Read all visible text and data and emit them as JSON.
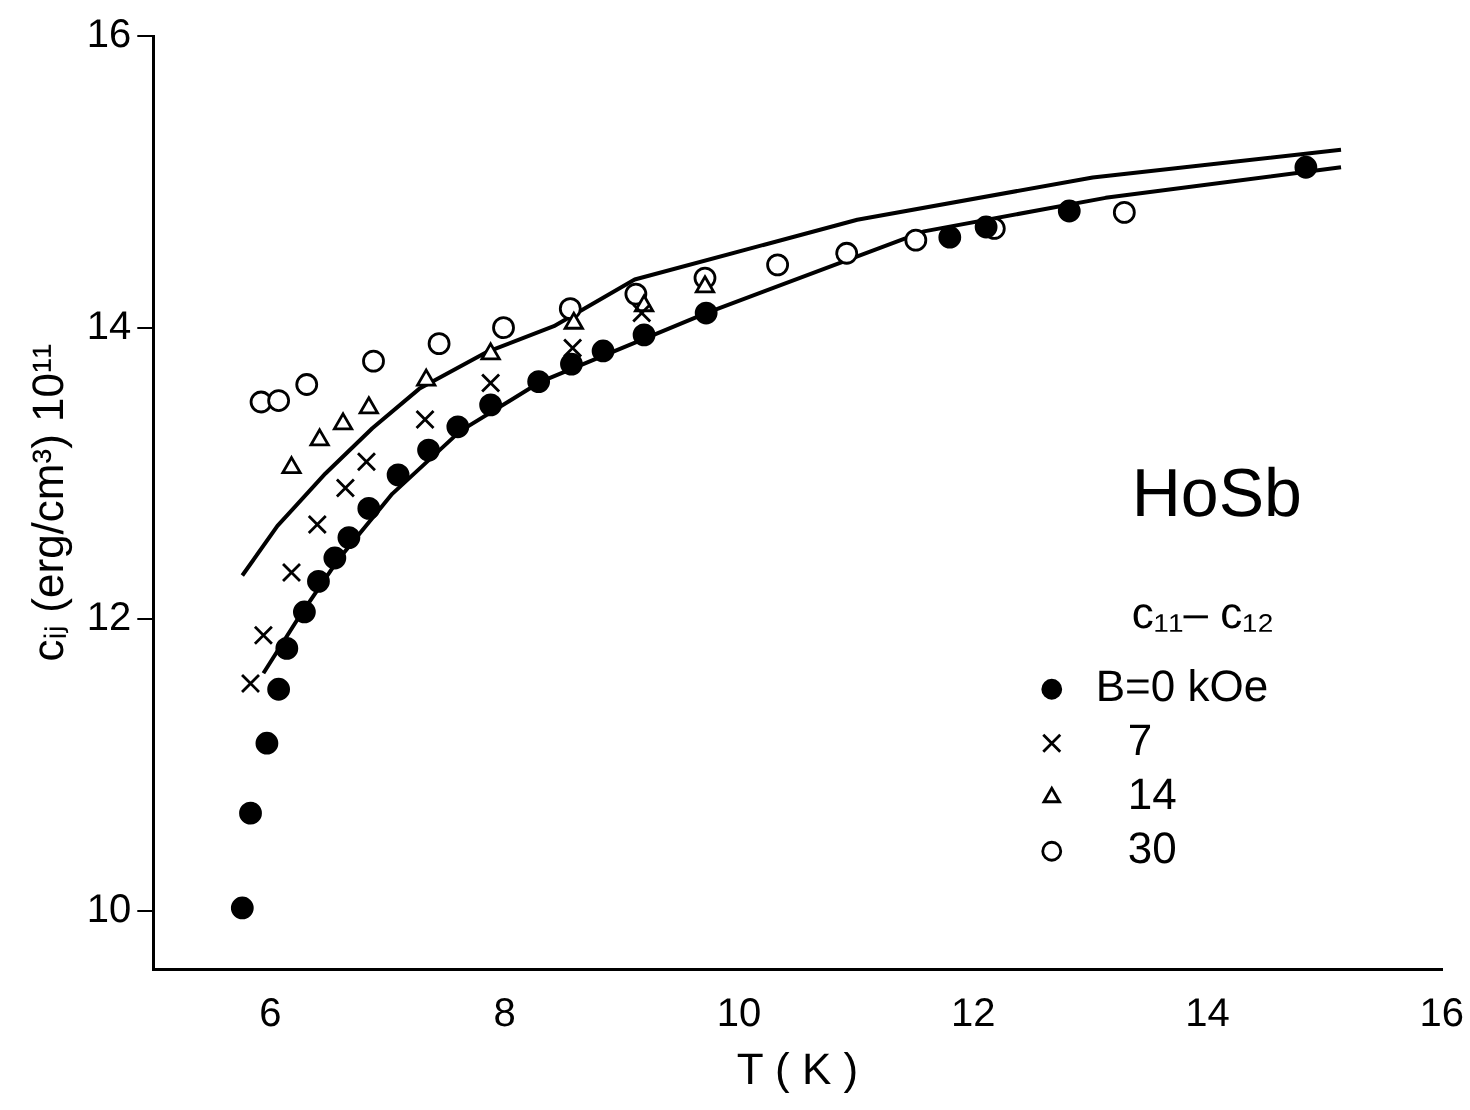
{
  "chart_data": {
    "type": "scatter",
    "xlabel": "T ( K )",
    "ylabel": "cᵢⱼ (erg/cm³) 10¹¹",
    "annotations": [
      "HoSb",
      "c₁₁– c₁₂"
    ],
    "xlim": [
      5,
      16
    ],
    "xticks": [
      6,
      8,
      10,
      12,
      14,
      16
    ],
    "ylim": [
      9.6,
      16
    ],
    "yticks": [
      10,
      12,
      14,
      16
    ],
    "grid": false,
    "legend": "bottom right",
    "series": [
      {
        "name": "B=0 kOe",
        "marker": "circle",
        "color": "#000000",
        "x": [
          5.76,
          5.83,
          5.97,
          6.07,
          6.14,
          6.29,
          6.41,
          6.55,
          6.67,
          6.84,
          7.09,
          7.35,
          7.6,
          7.88,
          8.29,
          8.57,
          8.84,
          9.19,
          9.72,
          11.8,
          12.11,
          12.82,
          14.84
        ],
        "values": [
          10.02,
          10.67,
          11.15,
          11.52,
          11.8,
          12.05,
          12.26,
          12.42,
          12.56,
          12.76,
          12.99,
          13.16,
          13.32,
          13.47,
          13.63,
          13.75,
          13.84,
          13.95,
          14.1,
          14.62,
          14.69,
          14.8,
          15.1
        ]
      },
      {
        "name": "7",
        "marker": "cross",
        "color": "#000000",
        "x": [
          5.83,
          5.94,
          6.18,
          6.4,
          6.64,
          6.82,
          7.32,
          7.88,
          8.58,
          9.17
        ],
        "values": [
          11.56,
          11.89,
          12.32,
          12.65,
          12.9,
          13.08,
          13.37,
          13.62,
          13.86,
          14.1
        ]
      },
      {
        "name": "14",
        "marker": "triangle",
        "color": "#000000",
        "x": [
          6.18,
          6.42,
          6.62,
          6.84,
          7.33,
          7.88,
          8.59,
          9.19,
          9.71
        ],
        "values": [
          13.04,
          13.23,
          13.34,
          13.45,
          13.64,
          13.82,
          14.03,
          14.15,
          14.28
        ]
      },
      {
        "name": "30",
        "marker": "circle",
        "color": "#000000",
        "x": [
          5.92,
          6.07,
          6.31,
          6.88,
          7.44,
          7.99,
          8.56,
          9.12,
          9.71,
          10.33,
          10.92,
          11.51,
          12.18,
          13.29
        ],
        "values": [
          13.49,
          13.5,
          13.61,
          13.77,
          13.89,
          14.0,
          14.13,
          14.23,
          14.34,
          14.43,
          14.51,
          14.6,
          14.68,
          14.79
        ]
      },
      {
        "type": "line",
        "marker": "none",
        "line_style": "solid",
        "color": "#000000",
        "x": [
          5.76,
          6.06,
          6.47,
          6.87,
          7.27,
          7.84,
          8.42,
          9.11,
          11.01,
          13.02,
          15.14
        ],
        "values": [
          12.3,
          12.64,
          13.0,
          13.31,
          13.58,
          13.83,
          14.01,
          14.33,
          14.74,
          15.03,
          15.22
        ]
      },
      {
        "type": "line",
        "marker": "none",
        "line_style": "solid",
        "color": "#000000",
        "x": [
          5.94,
          6.24,
          6.58,
          7.04,
          7.62,
          8.31,
          9.72,
          11.58,
          13.13,
          15.14
        ],
        "values": [
          11.63,
          12.01,
          12.41,
          12.86,
          13.29,
          13.63,
          14.1,
          14.66,
          14.89,
          15.1
        ]
      }
    ]
  }
}
